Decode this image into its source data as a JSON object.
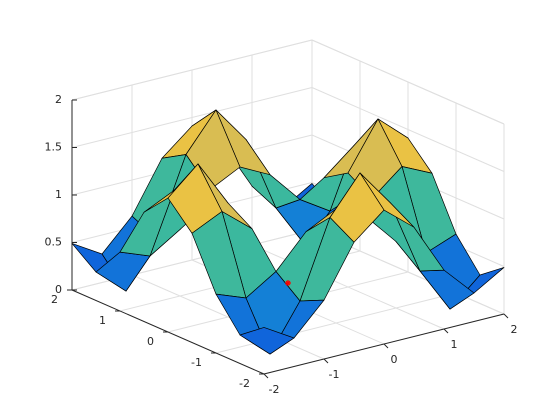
{
  "chart_data": {
    "type": "surface",
    "x": [
      -2,
      -1.5,
      -1,
      -0.5,
      0,
      0.5,
      1,
      1.5,
      2
    ],
    "y": [
      -2,
      -1.5,
      -1,
      -0.5,
      0,
      0.5,
      1,
      1.5,
      2
    ],
    "z": [
      [
        0.49,
        0.3,
        0.62,
        1.15,
        1.41,
        1.15,
        0.62,
        0.3,
        0.49
      ],
      [
        0.3,
        0.02,
        0.5,
        1.3,
        1.69,
        1.3,
        0.5,
        0.02,
        0.3
      ],
      [
        0.62,
        0.5,
        0.7,
        1.04,
        1.2,
        1.04,
        0.7,
        0.5,
        0.62
      ],
      [
        1.15,
        1.3,
        1.04,
        null,
        null,
        null,
        1.04,
        1.3,
        1.15
      ],
      [
        1.41,
        1.69,
        1.2,
        null,
        null,
        null,
        1.2,
        1.69,
        1.41
      ],
      [
        1.15,
        1.3,
        1.04,
        null,
        null,
        null,
        1.04,
        1.3,
        1.15
      ],
      [
        0.62,
        0.5,
        0.7,
        1.04,
        1.2,
        1.04,
        0.7,
        0.5,
        0.62
      ],
      [
        0.3,
        0.02,
        0.5,
        1.3,
        1.69,
        1.3,
        0.5,
        0.02,
        0.3
      ],
      [
        0.49,
        0.3,
        0.62,
        1.15,
        1.41,
        1.15,
        0.62,
        0.3,
        0.49
      ]
    ],
    "xlim": [
      -2,
      2
    ],
    "ylim": [
      -2,
      2
    ],
    "zlim": [
      0,
      2
    ],
    "xticks": [
      -2,
      -1,
      0,
      1,
      2
    ],
    "yticks": [
      -2,
      -1,
      0,
      1,
      2
    ],
    "zticks": [
      0,
      0.5,
      1,
      1.5,
      2
    ],
    "grid": true,
    "colormap": [
      "#352a87",
      "#0f5cdd",
      "#1481d6",
      "#06a4ca",
      "#2eb7a4",
      "#87bf77",
      "#d1bb59",
      "#fec832",
      "#f9fb0e"
    ],
    "marker": {
      "x": 0,
      "y": 0,
      "z": 0.2,
      "color": "#ff0000"
    }
  }
}
